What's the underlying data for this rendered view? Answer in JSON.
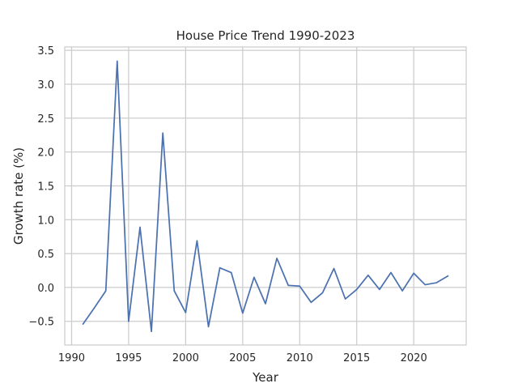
{
  "colors": {
    "line": "#4c72b0",
    "grid": "#cccccc",
    "frame": "#cccccc",
    "background": "#ffffff",
    "text": "#262626"
  },
  "chart_data": {
    "type": "line",
    "title": "House Price Trend 1990-2023",
    "xlabel": "Year",
    "ylabel": "Growth rate (%)",
    "xlim": [
      1989.4,
      2024.6
    ],
    "ylim": [
      -0.85,
      3.55
    ],
    "xticks": [
      1990,
      1995,
      2000,
      2005,
      2010,
      2015,
      2020
    ],
    "xtick_labels": [
      "1990",
      "1995",
      "2000",
      "2005",
      "2010",
      "2015",
      "2020"
    ],
    "yticks": [
      -0.5,
      0.0,
      0.5,
      1.0,
      1.5,
      2.0,
      2.5,
      3.0,
      3.5
    ],
    "ytick_labels": [
      "−0.5",
      "0.0",
      "0.5",
      "1.0",
      "1.5",
      "2.0",
      "2.5",
      "3.0",
      "3.5"
    ],
    "grid": true,
    "series": [
      {
        "x": [
          1991,
          1992,
          1993,
          1994,
          1995,
          1996,
          1997,
          1998,
          1999,
          2000,
          2001,
          2002,
          2003,
          2004,
          2005,
          2006,
          2007,
          2008,
          2009,
          2010,
          2011,
          2012,
          2013,
          2014,
          2015,
          2016,
          2017,
          2018,
          2019,
          2020,
          2021,
          2022,
          2023
        ],
        "values": [
          -0.54,
          -0.3,
          -0.05,
          3.34,
          -0.5,
          0.89,
          -0.65,
          2.28,
          -0.05,
          -0.37,
          0.69,
          -0.58,
          0.29,
          0.22,
          -0.38,
          0.15,
          -0.24,
          0.43,
          0.03,
          0.02,
          -0.22,
          -0.08,
          0.28,
          -0.17,
          -0.03,
          0.18,
          -0.03,
          0.22,
          -0.05,
          0.21,
          0.04,
          0.07,
          0.17
        ]
      }
    ]
  }
}
